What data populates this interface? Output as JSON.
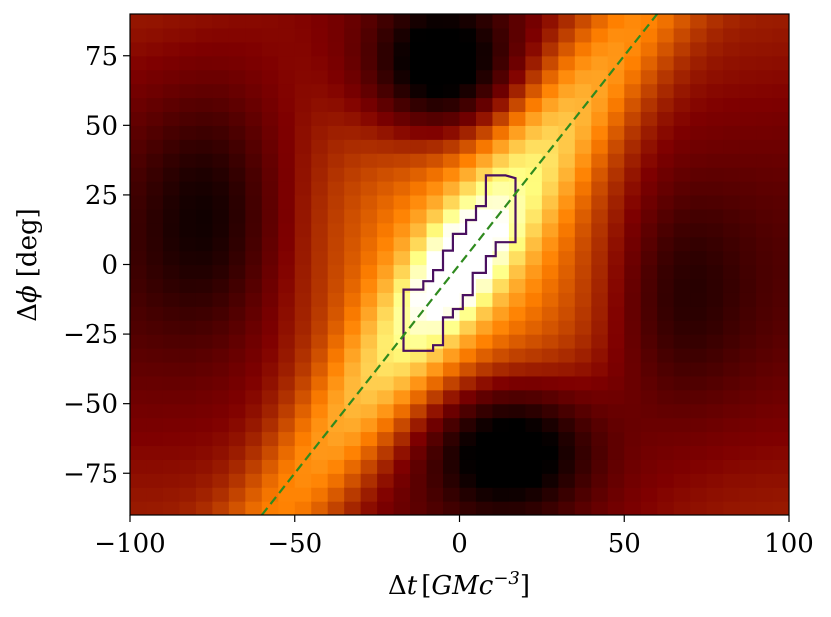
{
  "chart_data": {
    "type": "heatmap",
    "title": "",
    "xlabel": {
      "delta": "Δ",
      "var": "t",
      "unit_open": "[",
      "unit_base": "GMc",
      "unit_exp": "−3",
      "unit_close": "]"
    },
    "ylabel": {
      "delta": "Δ",
      "var": "ϕ",
      "unit": "[deg]"
    },
    "xlim": [
      -100,
      100
    ],
    "ylim": [
      -90,
      90
    ],
    "xticks": [
      -100,
      -50,
      0,
      50,
      100
    ],
    "xtick_labels": [
      "−100",
      "−50",
      "0",
      "50",
      "100"
    ],
    "yticks": [
      75,
      50,
      25,
      0,
      -25,
      -50,
      -75
    ],
    "ytick_labels": [
      "75",
      "50",
      "25",
      "0",
      "−25",
      "−50",
      "−75"
    ],
    "colormap": "afmhot",
    "colormap_stops": [
      "#000000",
      "#7f0000",
      "#ff8000",
      "#ffff80",
      "#ffffff"
    ],
    "grid": {
      "nx": 40,
      "ny": 36,
      "peak": [
        0,
        0
      ],
      "correlation_slope_deg_per_unit": 1.6,
      "ridge_note": "bright ridge elongated along the diagonal, dark lobes above-left and below-right"
    },
    "contour": {
      "color": "#4a1060",
      "points": [
        [
          -17,
          -31
        ],
        [
          -8,
          -31
        ],
        [
          -8,
          -29
        ],
        [
          -5,
          -29
        ],
        [
          -5,
          -19
        ],
        [
          -2,
          -19
        ],
        [
          -2,
          -16
        ],
        [
          1,
          -16
        ],
        [
          1,
          -11
        ],
        [
          4,
          -11
        ],
        [
          4,
          -3
        ],
        [
          8,
          -3
        ],
        [
          8,
          3
        ],
        [
          11,
          3
        ],
        [
          11,
          8
        ],
        [
          17,
          8
        ],
        [
          17,
          31
        ],
        [
          14,
          32
        ],
        [
          8,
          32
        ],
        [
          8,
          21
        ],
        [
          5,
          21
        ],
        [
          5,
          16
        ],
        [
          2,
          16
        ],
        [
          2,
          11
        ],
        [
          -2,
          11
        ],
        [
          -2,
          5
        ],
        [
          -5,
          5
        ],
        [
          -5,
          -2
        ],
        [
          -8,
          -2
        ],
        [
          -8,
          -6
        ],
        [
          -11,
          -6
        ],
        [
          -11,
          -9
        ],
        [
          -17,
          -9
        ],
        [
          -17,
          -31
        ]
      ]
    },
    "guide_line": {
      "color": "#2f8a1e",
      "style": "dashed",
      "slope": 1.5,
      "intercept": 0
    }
  }
}
